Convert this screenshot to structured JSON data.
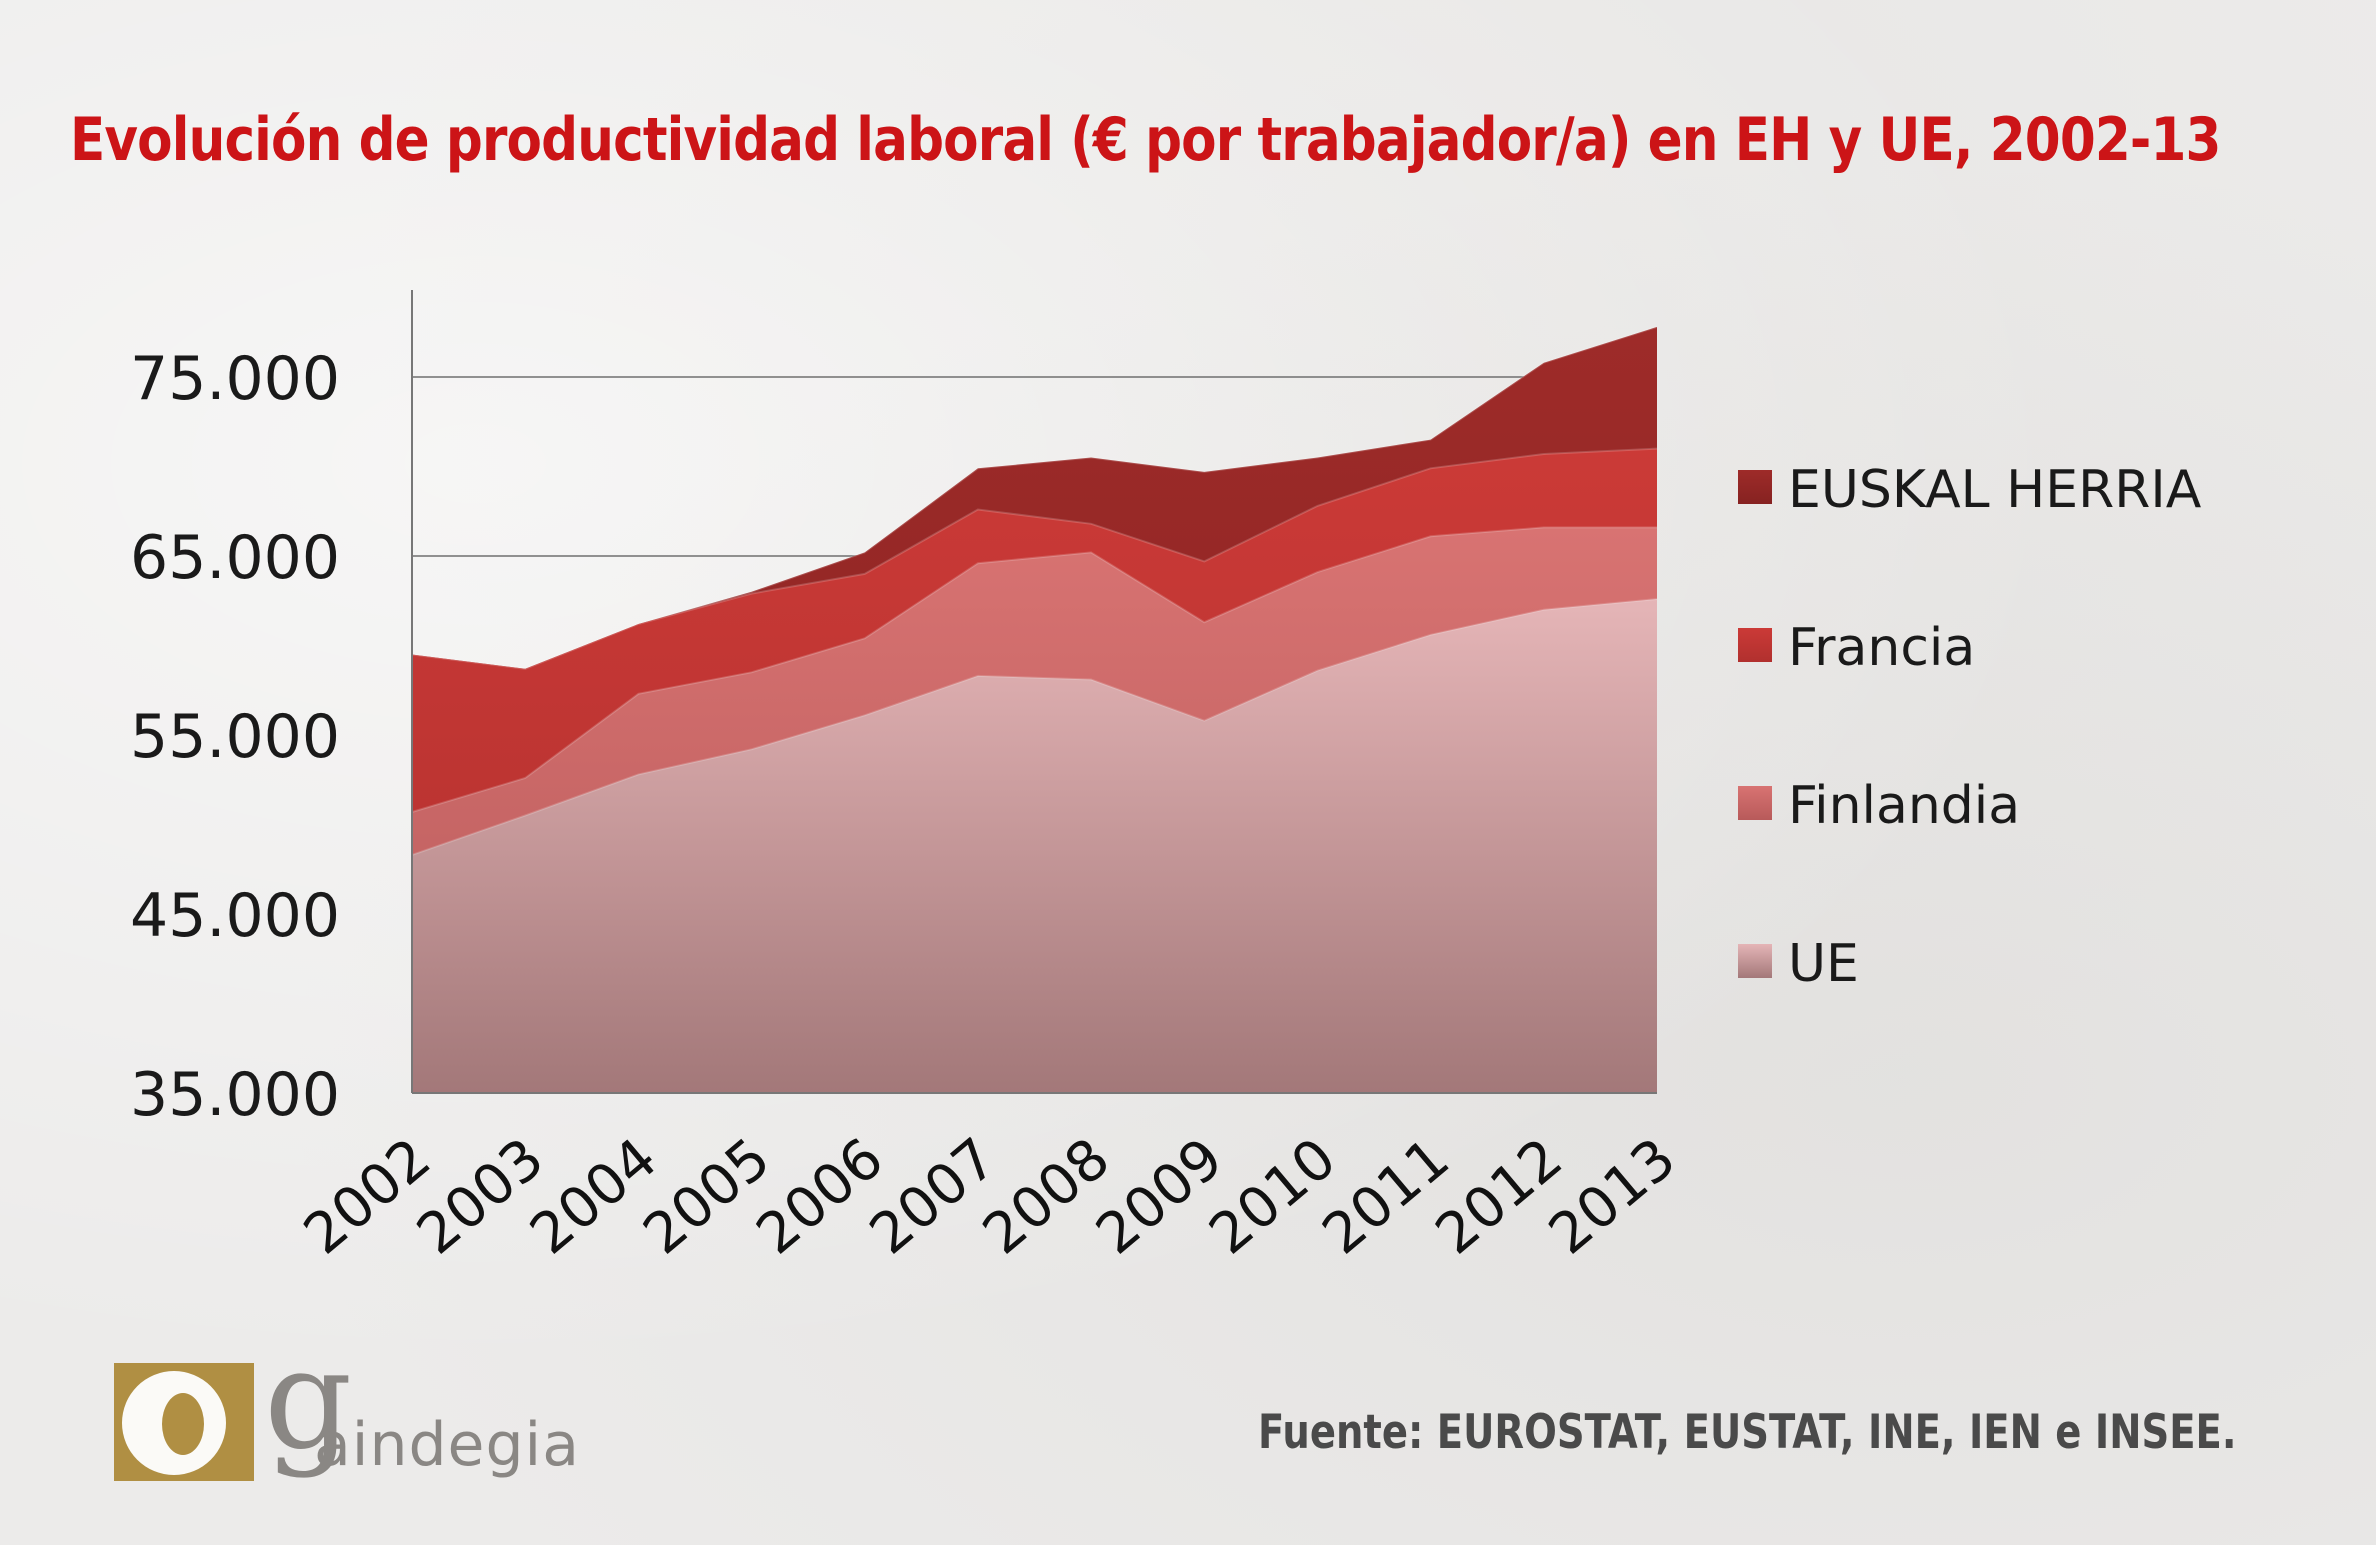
{
  "title": "Evolución de productividad laboral (€ por trabajador/a) en EH y UE, 2002-13",
  "source": "Fuente: EUROSTAT, EUSTAT, INE, IEN e INSEE.",
  "logo": {
    "mark_letter": "g",
    "name": "aindegia"
  },
  "colors": {
    "title": "#cc1417",
    "source": "#4a4a4a"
  },
  "chart_data": {
    "type": "area",
    "title": "Evolución de productividad laboral (€ por trabajador/a) en EH y UE, 2002-13",
    "xlabel": "",
    "ylabel": "",
    "ylim": [
      35000,
      80000
    ],
    "yticks": [
      35000,
      45000,
      55000,
      65000,
      75000
    ],
    "ytick_labels": [
      "35.000",
      "45.000",
      "55.000",
      "65.000",
      "75.000"
    ],
    "categories": [
      "2002",
      "2003",
      "2004",
      "2005",
      "2006",
      "2007",
      "2008",
      "2009",
      "2010",
      "2011",
      "2012",
      "2013"
    ],
    "legend_position": "right",
    "series": [
      {
        "name": "EUSKAL HERRIA",
        "color": "#9a2a28",
        "values": [
          59500,
          58700,
          61200,
          63000,
          65200,
          69900,
          70500,
          69700,
          70500,
          71500,
          75800,
          77800
        ]
      },
      {
        "name": "Francia",
        "color": "#c43a36",
        "values": [
          59500,
          58700,
          61200,
          62900,
          64000,
          67600,
          66800,
          64700,
          67800,
          69900,
          70700,
          71000
        ]
      },
      {
        "name": "Finlandia",
        "color": "#d26a6a",
        "values": [
          50700,
          52600,
          57300,
          58500,
          60400,
          64600,
          65200,
          61300,
          64100,
          66100,
          66600,
          66600
        ]
      },
      {
        "name": "UE",
        "color": "#d9a6a8",
        "values": [
          48300,
          50500,
          52800,
          54200,
          56100,
          58300,
          58100,
          55800,
          58600,
          60600,
          62000,
          62600
        ]
      }
    ]
  }
}
